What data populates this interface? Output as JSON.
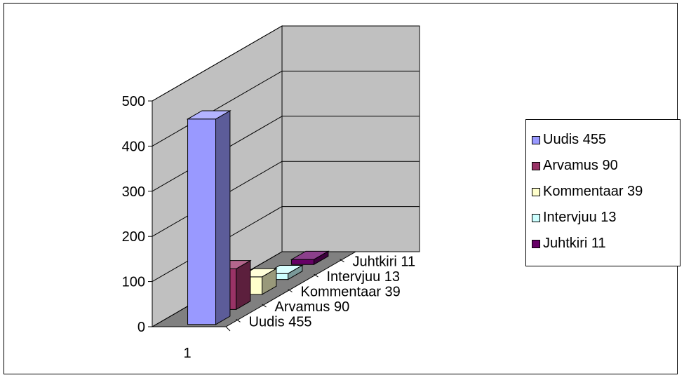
{
  "chart_data": {
    "type": "bar",
    "categories": [
      "1"
    ],
    "ylim": [
      0,
      500
    ],
    "yticks": [
      0,
      100,
      200,
      300,
      400,
      500
    ],
    "grid": true,
    "legend_position": "right",
    "series": [
      {
        "name": "Uudis 455",
        "value": 455,
        "color": "#9999ff"
      },
      {
        "name": "Arvamus 90",
        "value": 90,
        "color": "#993366"
      },
      {
        "name": "Kommentaar 39",
        "value": 39,
        "color": "#ffffcc"
      },
      {
        "name": "Intervjuu 13",
        "value": 13,
        "color": "#ccffff"
      },
      {
        "name": "Juhtkiri 11",
        "value": 11,
        "color": "#660066"
      }
    ]
  }
}
